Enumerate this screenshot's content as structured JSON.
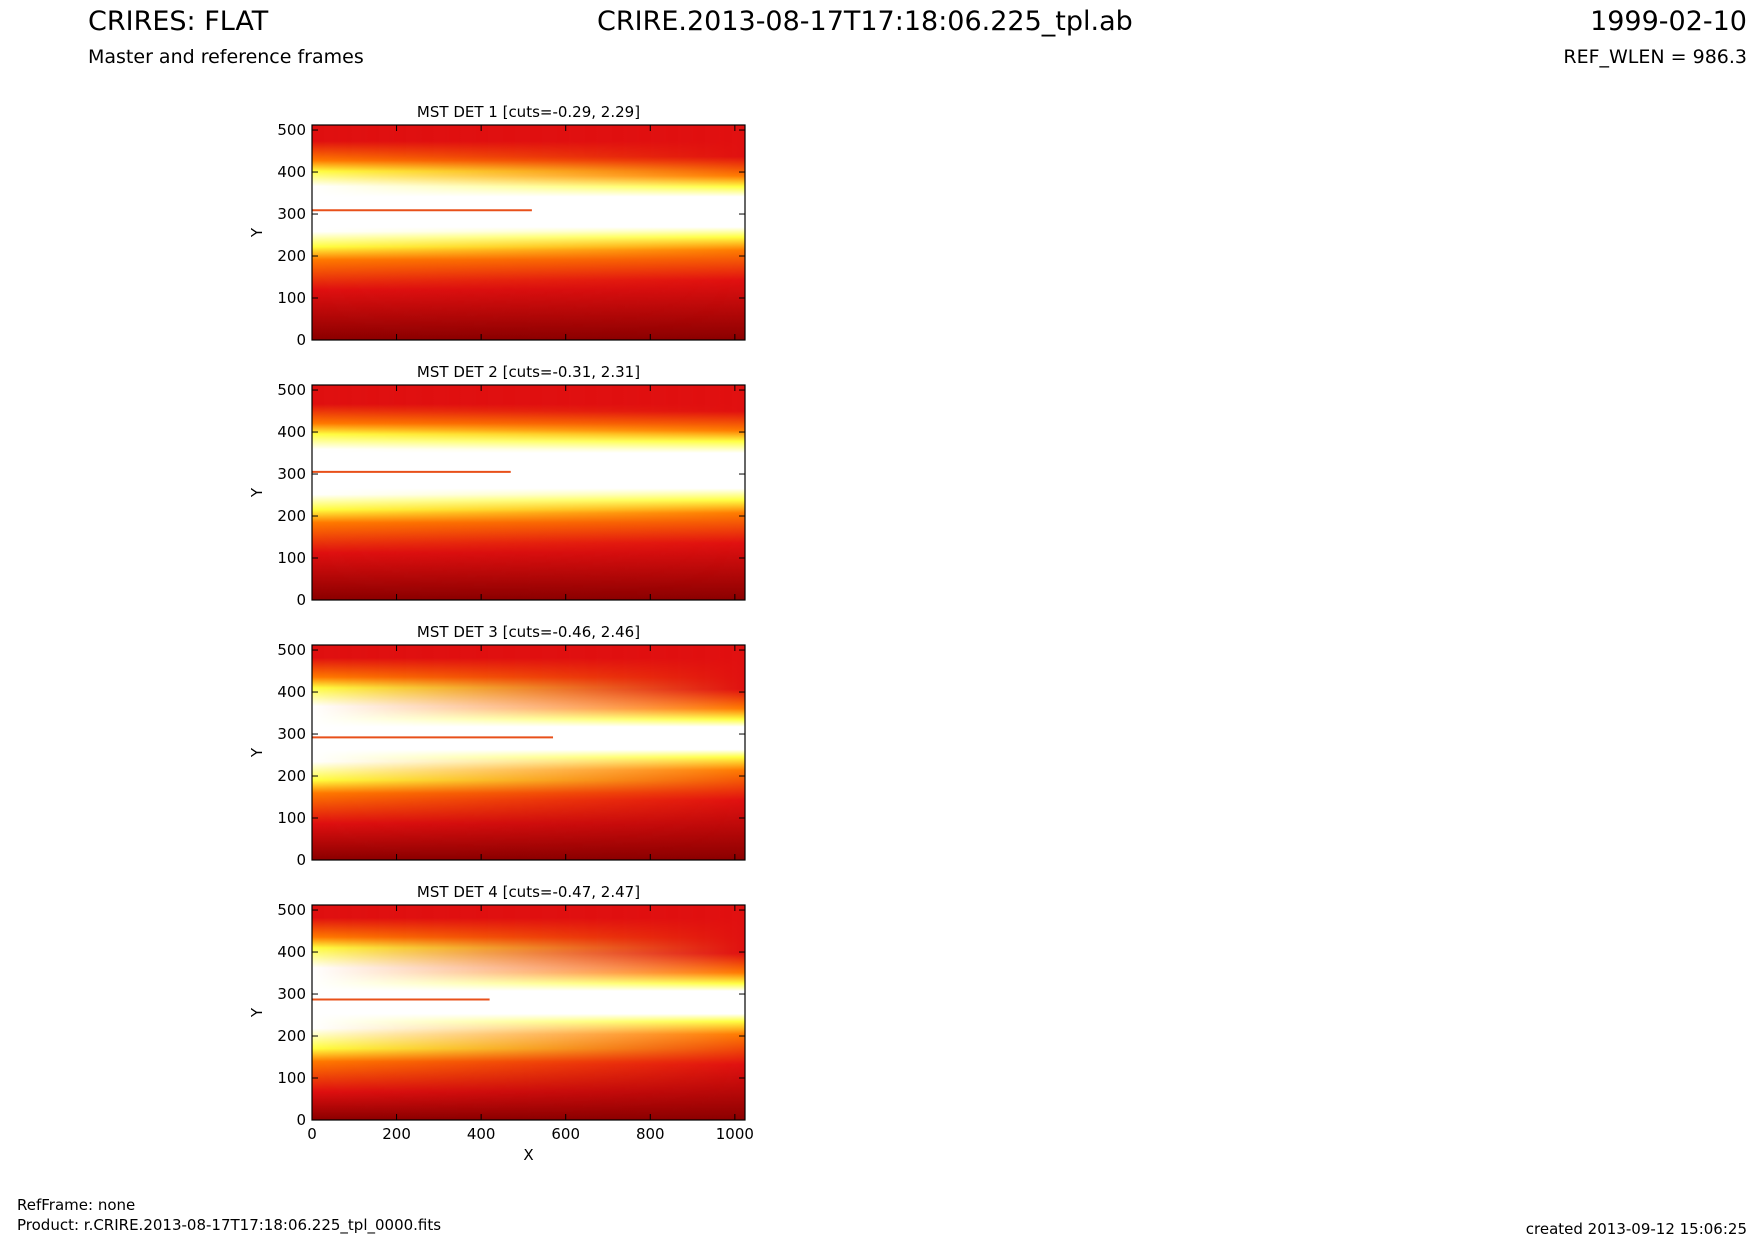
{
  "header": {
    "left_title": "CRIRES: FLAT",
    "left_subtitle": "Master and reference frames",
    "center_title": "CRIRE.2013-08-17T17:18:06.225_tpl.ab",
    "right_date": "1999-02-10",
    "right_subtitle": "REF_WLEN = 986.3"
  },
  "footer": {
    "ref_frame": "RefFrame: none",
    "product": "Product: r.CRIRE.2013-08-17T17:18:06.225_tpl_0000.fits",
    "created": "created 2013-09-12 15:06:25"
  },
  "colors": {
    "cmap": [
      "#8b0000",
      "#e01010",
      "#ff7a00",
      "#ffff40",
      "#ffffff"
    ]
  },
  "chart_data": [
    {
      "type": "heatmap",
      "title": "MST DET 1 [cuts=-0.29, 2.29]",
      "ylabel": "Y",
      "xlabel": "",
      "xlim": [
        0,
        1024
      ],
      "ylim": [
        0,
        512
      ],
      "xticks": [
        0,
        200,
        400,
        600,
        800,
        1000
      ],
      "yticks": [
        0,
        100,
        200,
        300,
        400,
        500
      ],
      "cuts": [
        -0.29,
        2.29
      ],
      "band": {
        "center_left": 312,
        "center_right": 305,
        "half_width_left": 90,
        "half_width_right": 60
      },
      "streak": {
        "y": 309,
        "x_from": 0,
        "x_to": 520
      }
    },
    {
      "type": "heatmap",
      "title": "MST DET 2 [cuts=-0.31, 2.31]",
      "ylabel": "Y",
      "xlabel": "",
      "xlim": [
        0,
        1024
      ],
      "ylim": [
        0,
        512
      ],
      "xticks": [
        0,
        200,
        400,
        600,
        800,
        1000
      ],
      "yticks": [
        0,
        100,
        200,
        300,
        400,
        500
      ],
      "cuts": [
        -0.31,
        2.31
      ],
      "band": {
        "center_left": 305,
        "center_right": 308,
        "half_width_left": 90,
        "half_width_right": 70
      },
      "streak": {
        "y": 305,
        "x_from": 0,
        "x_to": 470
      }
    },
    {
      "type": "heatmap",
      "title": "MST DET 3 [cuts=-0.46, 2.46]",
      "ylabel": "Y",
      "xlabel": "",
      "xlim": [
        0,
        1024
      ],
      "ylim": [
        0,
        512
      ],
      "xticks": [
        0,
        200,
        400,
        600,
        800,
        1000
      ],
      "yticks": [
        0,
        100,
        200,
        300,
        400,
        500
      ],
      "cuts": [
        -0.46,
        2.46
      ],
      "band": {
        "center_left": 300,
        "center_right": 290,
        "half_width_left": 110,
        "half_width_right": 45
      },
      "streak": {
        "y": 292,
        "x_from": 0,
        "x_to": 570
      }
    },
    {
      "type": "heatmap",
      "title": "MST DET 4 [cuts=-0.47, 2.47]",
      "ylabel": "Y",
      "xlabel": "X",
      "xlim": [
        0,
        1024
      ],
      "ylim": [
        0,
        512
      ],
      "xticks": [
        0,
        200,
        400,
        600,
        800,
        1000
      ],
      "yticks": [
        0,
        100,
        200,
        300,
        400,
        500
      ],
      "cuts": [
        -0.47,
        2.47
      ],
      "band": {
        "center_left": 290,
        "center_right": 280,
        "half_width_left": 120,
        "half_width_right": 45
      },
      "streak": {
        "y": 287,
        "x_from": 0,
        "x_to": 420
      }
    }
  ]
}
